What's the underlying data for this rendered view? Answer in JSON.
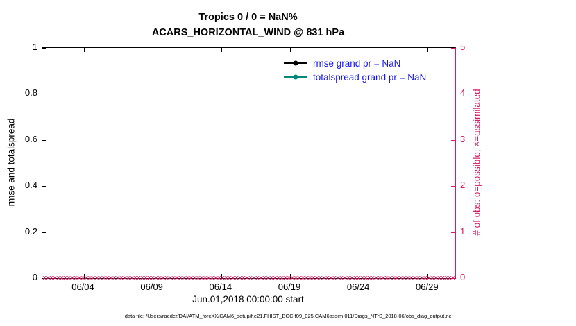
{
  "caption": "data file: /Users/raeder/DAI/ATM_forcXX/CAM6_setup/f.e21.FHIST_BGC.f09_025.CAM6assim.011/Diags_NTrS_2018-06/obs_diag_output.nc",
  "colors": {
    "axis_right": "#d81b60",
    "legend_text": "#1414ee",
    "rmse": "#000000",
    "totalspread": "#00897b",
    "axis_left": "#000000"
  },
  "chart_data": {
    "type": "line",
    "title": "Tropics 0 / 0 = NaN%",
    "subtitle": "ACARS_HORIZONTAL_WIND @ 831 hPa",
    "xlabel": "Jun.01,2018 00:00:00 start",
    "ylabel_left": "rmse and totalspread",
    "ylabel_right": "# of obs: o=possible; ×=assimilated",
    "x_range_days": [
      0,
      30
    ],
    "x_ticks": [
      {
        "label": "06/04",
        "day": 3
      },
      {
        "label": "06/09",
        "day": 8
      },
      {
        "label": "06/14",
        "day": 13
      },
      {
        "label": "06/19",
        "day": 18
      },
      {
        "label": "06/24",
        "day": 23
      },
      {
        "label": "06/29",
        "day": 28
      }
    ],
    "y_left": {
      "lim": [
        0,
        1
      ],
      "ticks": [
        0,
        0.2,
        0.4,
        0.6,
        0.8,
        1
      ],
      "labels": [
        "0",
        "0.2",
        "0.4",
        "0.6",
        "0.8",
        "1"
      ]
    },
    "y_right": {
      "lim": [
        0,
        5
      ],
      "ticks": [
        0,
        1,
        2,
        3,
        4,
        5
      ],
      "labels": [
        "0",
        "1",
        "2",
        "3",
        "4",
        "5"
      ]
    },
    "grid": false,
    "legend_position": "upper-right-inside",
    "series": [
      {
        "name": "rmse",
        "legend": "rmse grand pr = NaN",
        "color": "#000000",
        "values": [],
        "stat": "NaN"
      },
      {
        "name": "totalspread",
        "legend": "totalspread grand pr = NaN",
        "color": "#00897b",
        "values": [],
        "stat": "NaN"
      },
      {
        "name": "obs-assimilated",
        "marker": "×",
        "color": "#d81b60",
        "value": 0,
        "count": 118
      }
    ]
  }
}
